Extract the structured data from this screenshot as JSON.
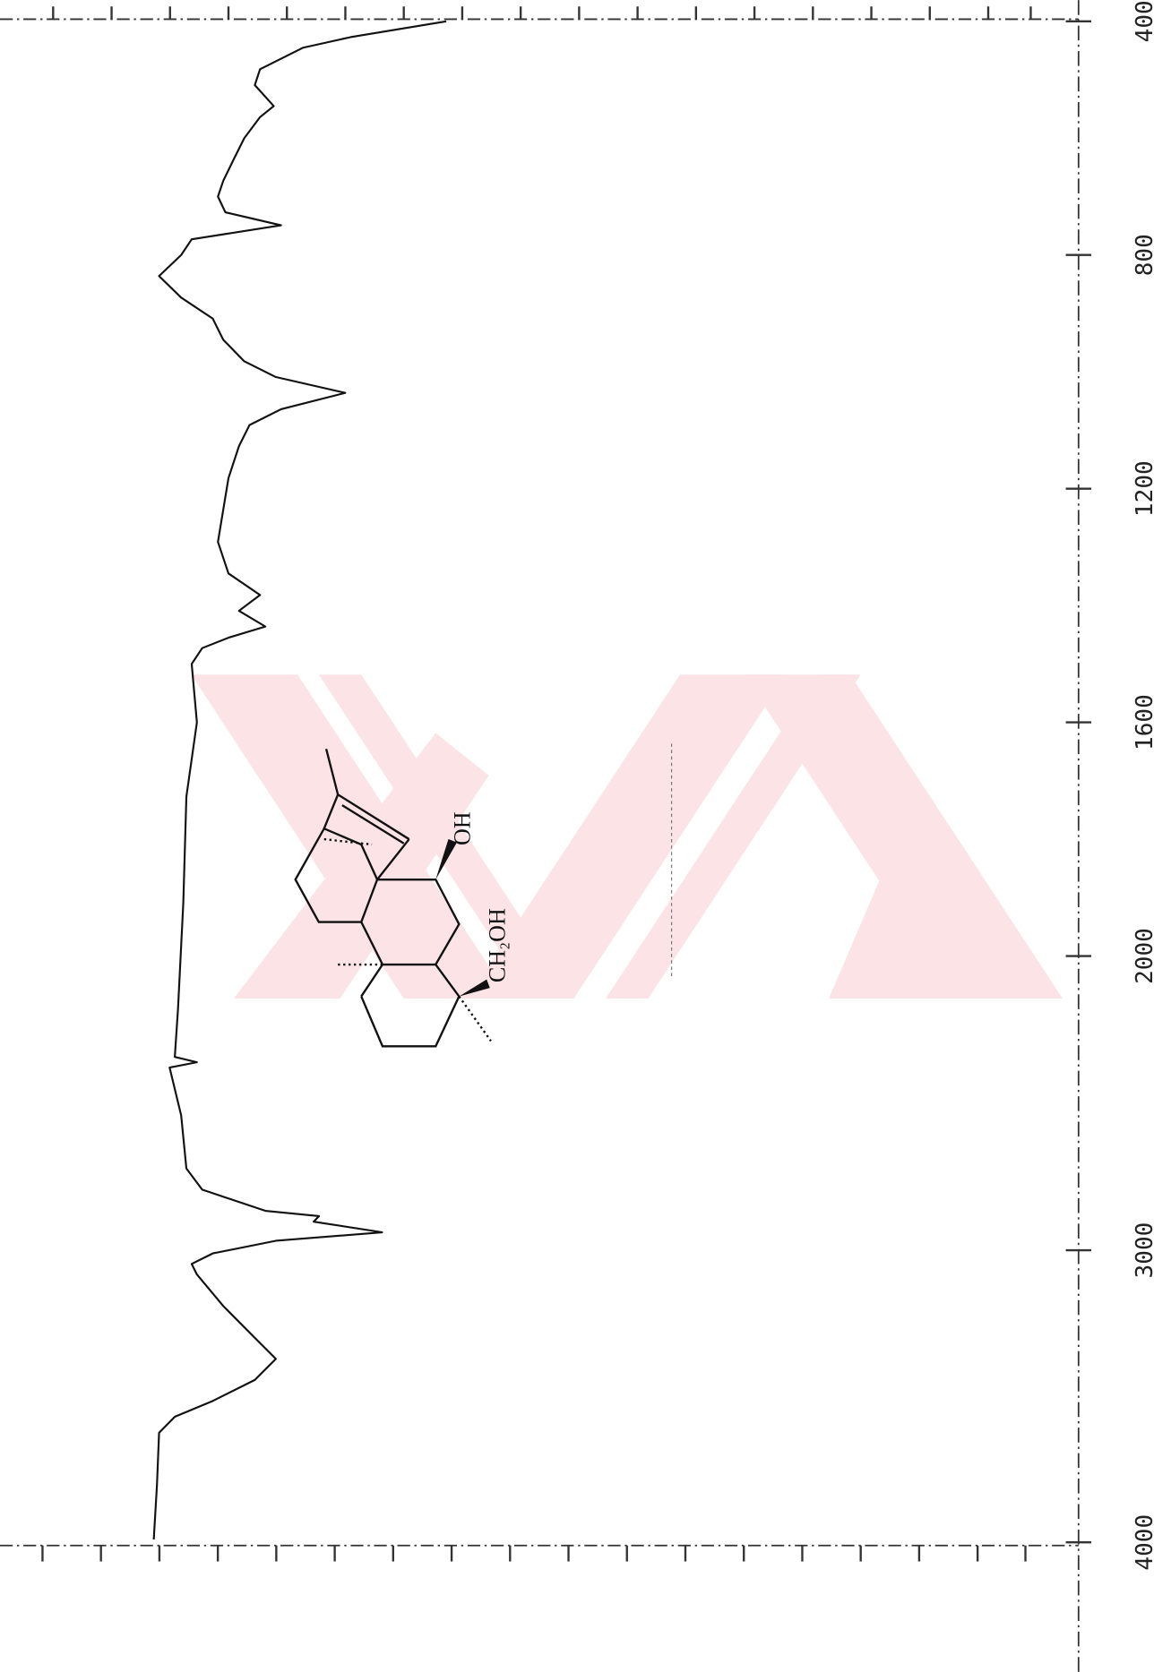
{
  "chart_data": {
    "type": "line",
    "x": [
      400,
      427,
      445,
      482,
      509,
      545,
      564,
      600,
      636,
      673,
      700,
      727,
      749,
      773,
      800,
      836,
      873,
      909,
      945,
      982,
      1009,
      1036,
      1064,
      1091,
      1127,
      1182,
      1236,
      1291,
      1345,
      1382,
      1409,
      1436,
      1455,
      1473,
      1500,
      1600,
      1727,
      1909,
      2181,
      2343,
      2361,
      2379,
      2542,
      2722,
      2794,
      2866,
      2884,
      2903,
      2939,
      2968,
      3011,
      3047,
      3083,
      3191,
      3300,
      3372,
      3444,
      3516,
      3570,
      3625,
      3805,
      3990
    ],
    "series": [
      {
        "color": "#111111",
        "values": [
          59.6,
          68.7,
          73.2,
          77.3,
          77.8,
          76.0,
          77.3,
          78.8,
          79.8,
          80.8,
          81.3,
          80.6,
          75.3,
          83.8,
          84.8,
          86.9,
          84.8,
          81.8,
          80.8,
          78.8,
          75.8,
          69.2,
          75.3,
          78.3,
          79.3,
          80.3,
          80.8,
          81.3,
          80.3,
          77.3,
          79.3,
          76.8,
          80.3,
          82.8,
          83.8,
          83.3,
          84.3,
          84.6,
          85.1,
          85.4,
          83.3,
          85.9,
          84.8,
          84.3,
          82.8,
          76.8,
          71.7,
          72.2,
          65.7,
          75.8,
          81.8,
          83.8,
          83.3,
          80.8,
          77.8,
          75.8,
          77.8,
          81.8,
          85.4,
          86.9,
          87.1,
          87.4
        ]
      }
    ],
    "xlim": [
      400,
      4000
    ],
    "xticks": [
      400,
      800,
      1200,
      1600,
      2000,
      3000,
      4000
    ],
    "ylim": [
      0,
      100
    ]
  },
  "structure": {
    "labels": [
      "OH",
      "CH₂OH"
    ]
  }
}
